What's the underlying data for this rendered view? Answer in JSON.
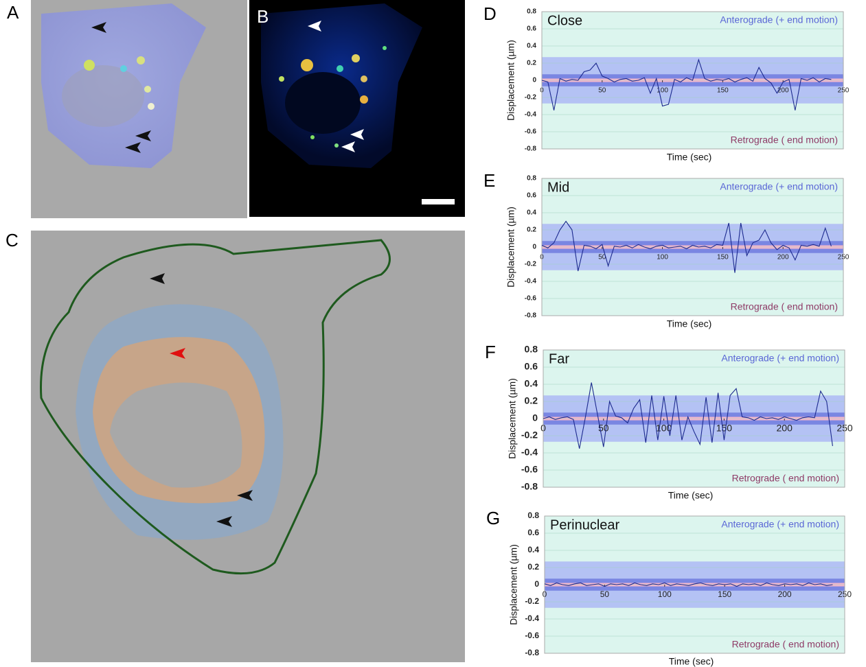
{
  "panel_labels": [
    "A",
    "B",
    "C"
  ],
  "chart_data": [
    {
      "type": "line",
      "panel": "D",
      "title": "Close",
      "ylabel": "Displacement (µm)",
      "xlabel": "Time (sec)",
      "annotations": [
        "Anterograde (+ end motion)",
        "Retrograde (  end motion)"
      ],
      "xlim": [
        0,
        250
      ],
      "xticks": [
        0,
        50,
        100,
        150,
        200,
        250
      ],
      "ylim": [
        -0.8,
        0.8
      ],
      "yticks": [
        -0.8,
        -0.6,
        -0.4,
        -0.2,
        0,
        0.2,
        0.4,
        0.6,
        0.8
      ],
      "grid": true,
      "bands": [
        {
          "from": -0.27,
          "to": 0.27,
          "color": "#b4c2f4"
        },
        {
          "from": -0.07,
          "to": 0.07,
          "color": "#7a86e2"
        },
        {
          "from": -0.02,
          "to": 0.02,
          "color": "#f2b7cc"
        }
      ],
      "x": [
        0,
        5,
        10,
        15,
        20,
        25,
        30,
        35,
        40,
        45,
        50,
        55,
        60,
        65,
        70,
        75,
        80,
        85,
        90,
        95,
        100,
        105,
        110,
        115,
        120,
        125,
        130,
        135,
        140,
        145,
        150,
        155,
        160,
        165,
        170,
        175,
        180,
        185,
        190,
        195,
        200,
        205,
        210,
        215,
        220,
        225,
        230,
        235,
        240
      ],
      "series": [
        {
          "color": "#1c2a8e",
          "values": [
            0,
            -0.02,
            -0.35,
            0.02,
            -0.01,
            0.01,
            0,
            0.1,
            0.12,
            0.2,
            0.05,
            0.02,
            -0.02,
            0.01,
            0.02,
            -0.01,
            0,
            0.03,
            -0.15,
            0.02,
            -0.3,
            -0.28,
            0.01,
            -0.02,
            0.03,
            0,
            0.24,
            0.02,
            -0.01,
            0.01,
            0,
            0.02,
            -0.02,
            0.01,
            0.03,
            -0.01,
            0.15,
            0.02,
            -0.03,
            -0.15,
            -0.02,
            0.01,
            -0.35,
            0.02,
            0,
            0.03,
            -0.02,
            0.02,
            0.01
          ]
        }
      ]
    },
    {
      "type": "line",
      "panel": "E",
      "title": "Mid",
      "ylabel": "Displacement (µm)",
      "xlabel": "Time (sec)",
      "annotations": [
        "Anterograde (+ end motion)",
        "Retrograde (  end motion)"
      ],
      "xlim": [
        0,
        250
      ],
      "xticks": [
        0,
        50,
        100,
        150,
        200,
        250
      ],
      "ylim": [
        -0.8,
        0.8
      ],
      "yticks": [
        -0.8,
        -0.6,
        -0.4,
        -0.2,
        0,
        0.2,
        0.4,
        0.6,
        0.8
      ],
      "grid": true,
      "bands": [
        {
          "from": -0.27,
          "to": 0.27,
          "color": "#b4c2f4"
        },
        {
          "from": -0.07,
          "to": 0.07,
          "color": "#7a86e2"
        },
        {
          "from": -0.02,
          "to": 0.02,
          "color": "#f2b7cc"
        }
      ],
      "x": [
        0,
        5,
        10,
        15,
        20,
        25,
        30,
        35,
        40,
        45,
        50,
        55,
        60,
        65,
        70,
        75,
        80,
        85,
        90,
        95,
        100,
        105,
        110,
        115,
        120,
        125,
        130,
        135,
        140,
        145,
        150,
        155,
        160,
        165,
        170,
        175,
        180,
        185,
        190,
        195,
        200,
        205,
        210,
        215,
        220,
        225,
        230,
        235,
        240
      ],
      "series": [
        {
          "color": "#1c2a8e",
          "values": [
            0.02,
            -0.01,
            0.05,
            0.2,
            0.3,
            0.2,
            -0.28,
            0.02,
            0.01,
            -0.02,
            0.03,
            -0.22,
            0.01,
            0,
            0.02,
            -0.01,
            0.03,
            0,
            -0.02,
            0.01,
            0.02,
            -0.01,
            0,
            0.01,
            -0.02,
            0.02,
            0,
            0.01,
            -0.01,
            0.03,
            0.02,
            0.28,
            -0.3,
            0.28,
            -0.1,
            0.05,
            0.08,
            0.2,
            0.05,
            -0.03,
            0.02,
            -0.01,
            -0.15,
            0.02,
            0.01,
            0.03,
            0.01,
            0.22,
            0.01
          ]
        }
      ]
    },
    {
      "type": "line",
      "panel": "F",
      "title": "Far",
      "ylabel": "Displacement (µm)",
      "xlabel": "Time (sec)",
      "annotations": [
        "Anterograde (+ end motion)",
        "Retrograde (  end motion)"
      ],
      "xlim": [
        0,
        250
      ],
      "xticks": [
        0,
        50,
        100,
        150,
        200,
        250
      ],
      "ylim": [
        -0.8,
        0.8
      ],
      "yticks": [
        -0.8,
        -0.6,
        -0.4,
        -0.2,
        0,
        0.2,
        0.4,
        0.6,
        0.8
      ],
      "grid": true,
      "bands": [
        {
          "from": -0.27,
          "to": 0.27,
          "color": "#b4c2f4"
        },
        {
          "from": -0.07,
          "to": 0.07,
          "color": "#7a86e2"
        },
        {
          "from": -0.02,
          "to": 0.02,
          "color": "#f2b7cc"
        }
      ],
      "x": [
        0,
        5,
        10,
        15,
        20,
        25,
        30,
        35,
        40,
        45,
        50,
        55,
        60,
        65,
        70,
        75,
        80,
        85,
        90,
        95,
        100,
        105,
        110,
        115,
        120,
        125,
        130,
        135,
        140,
        145,
        150,
        155,
        160,
        165,
        170,
        175,
        180,
        185,
        190,
        195,
        200,
        205,
        210,
        215,
        220,
        225,
        230,
        235,
        240
      ],
      "series": [
        {
          "color": "#1c2a8e",
          "values": [
            0,
            0.02,
            -0.01,
            0.01,
            0.02,
            -0.01,
            -0.35,
            0.02,
            0.42,
            0.05,
            -0.33,
            0.2,
            0.03,
            0.01,
            -0.05,
            0.12,
            0.22,
            -0.28,
            0.27,
            -0.25,
            0.26,
            -0.2,
            0.27,
            -0.25,
            0.02,
            -0.15,
            -0.3,
            0.25,
            -0.28,
            0.3,
            -0.25,
            0.27,
            0.35,
            0.02,
            0.01,
            -0.02,
            0.02,
            0,
            0.01,
            -0.01,
            0.02,
            0,
            -0.02,
            0.01,
            0.02,
            0.01,
            0.32,
            0.2,
            -0.32
          ]
        }
      ]
    },
    {
      "type": "line",
      "panel": "G",
      "title": "Perinuclear",
      "ylabel": "Displacement (µm)",
      "xlabel": "Time (sec)",
      "annotations": [
        "Anterograde (+ end motion)",
        "Retrograde (  end motion)"
      ],
      "xlim": [
        0,
        250
      ],
      "xticks": [
        0,
        50,
        100,
        150,
        200,
        250
      ],
      "ylim": [
        -0.8,
        0.8
      ],
      "yticks": [
        -0.8,
        -0.6,
        -0.4,
        -0.2,
        0,
        0.2,
        0.4,
        0.6,
        0.8
      ],
      "grid": true,
      "bands": [
        {
          "from": -0.27,
          "to": 0.27,
          "color": "#b4c2f4"
        },
        {
          "from": -0.07,
          "to": 0.07,
          "color": "#7a86e2"
        },
        {
          "from": -0.02,
          "to": 0.02,
          "color": "#f2b7cc"
        }
      ],
      "x": [
        0,
        5,
        10,
        15,
        20,
        25,
        30,
        35,
        40,
        45,
        50,
        55,
        60,
        65,
        70,
        75,
        80,
        85,
        90,
        95,
        100,
        105,
        110,
        115,
        120,
        125,
        130,
        135,
        140,
        145,
        150,
        155,
        160,
        165,
        170,
        175,
        180,
        185,
        190,
        195,
        200,
        205,
        210,
        215,
        220,
        225,
        230,
        235,
        240
      ],
      "series": [
        {
          "color": "#1c2a8e",
          "values": [
            0.01,
            -0.01,
            0.02,
            0,
            -0.01,
            0.01,
            0.02,
            -0.01,
            0,
            0.01,
            -0.02,
            0.01,
            0,
            0.01,
            -0.01,
            0.02,
            0,
            -0.01,
            0.01,
            0,
            0.02,
            -0.01,
            0.01,
            0,
            -0.01,
            0.01,
            0.02,
            0,
            -0.01,
            0.01,
            0,
            0.01,
            -0.02,
            0.01,
            0,
            0.01,
            -0.01,
            0.02,
            0,
            -0.01,
            0.01,
            0,
            0.01,
            -0.01,
            0.02,
            0,
            0.01,
            -0.01,
            0
          ]
        }
      ]
    }
  ]
}
